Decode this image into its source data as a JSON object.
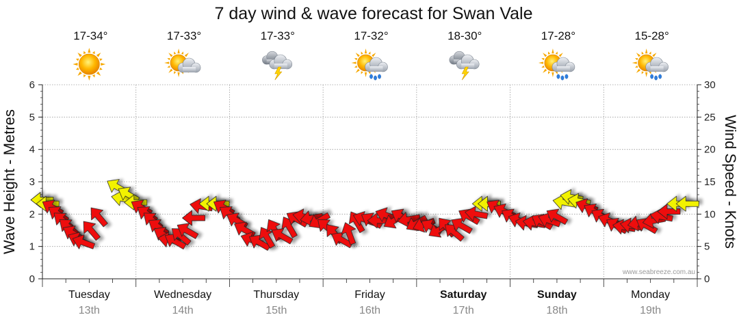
{
  "chart_data": {
    "type": "line",
    "title": "7 day wind & wave forecast for Swan Vale",
    "ylabel_left": "Wave Height - Metres",
    "ylabel_right": "Wind Speed - Knots",
    "ylim_left": [
      0,
      6
    ],
    "ylim_right": [
      0,
      30
    ],
    "yticks_left": [
      "0",
      "1",
      "2",
      "3",
      "4",
      "5",
      "6"
    ],
    "yticks_right": [
      "0",
      "5",
      "10",
      "15",
      "20",
      "25",
      "30"
    ],
    "watermark": "www.seabreeze.com.au",
    "days": [
      {
        "name": "Tuesday",
        "date": "13th",
        "temp": "17-34°",
        "weather": "sunny",
        "bold": false
      },
      {
        "name": "Wednesday",
        "date": "14th",
        "temp": "17-33°",
        "weather": "partly-cloudy",
        "bold": false
      },
      {
        "name": "Thursday",
        "date": "15th",
        "temp": "17-33°",
        "weather": "thunderstorm",
        "bold": false
      },
      {
        "name": "Friday",
        "date": "16th",
        "temp": "17-32°",
        "weather": "sun-showers",
        "bold": false
      },
      {
        "name": "Saturday",
        "date": "17th",
        "temp": "18-30°",
        "weather": "thunderstorm",
        "bold": true
      },
      {
        "name": "Sunday",
        "date": "18th",
        "temp": "17-28°",
        "weather": "sun-showers",
        "bold": true
      },
      {
        "name": "Monday",
        "date": "19th",
        "temp": "15-28°",
        "weather": "sun-showers",
        "bold": false
      }
    ],
    "wind_series": {
      "name": "Wind speed (knots) and direction (arrow heading degrees, 0=up, clockwise), 3-hourly",
      "points": [
        {
          "t": 0.0,
          "speed": 12.2,
          "heading": 270,
          "color": "yellow"
        },
        {
          "t": 0.06,
          "speed": 11.6,
          "heading": 270,
          "color": "yellow"
        },
        {
          "t": 0.11,
          "speed": 11.0,
          "heading": 300,
          "color": "red"
        },
        {
          "t": 0.17,
          "speed": 10.0,
          "heading": 305,
          "color": "red"
        },
        {
          "t": 0.22,
          "speed": 9.0,
          "heading": 310,
          "color": "red"
        },
        {
          "t": 0.28,
          "speed": 8.0,
          "heading": 310,
          "color": "red"
        },
        {
          "t": 0.33,
          "speed": 7.0,
          "heading": 300,
          "color": "red"
        },
        {
          "t": 0.39,
          "speed": 6.0,
          "heading": 295,
          "color": "red"
        },
        {
          "t": 0.44,
          "speed": 5.6,
          "heading": 290,
          "color": "red"
        },
        {
          "t": 0.52,
          "speed": 7.5,
          "heading": 320,
          "color": "red"
        },
        {
          "t": 0.6,
          "speed": 9.6,
          "heading": 320,
          "color": "red"
        },
        {
          "t": 0.8,
          "speed": 14.2,
          "heading": 300,
          "color": "yellow"
        },
        {
          "t": 0.86,
          "speed": 12.4,
          "heading": 280,
          "color": "yellow"
        },
        {
          "t": 0.92,
          "speed": 13.0,
          "heading": 300,
          "color": "yellow"
        },
        {
          "t": 1.0,
          "speed": 11.8,
          "heading": 270,
          "color": "yellow"
        },
        {
          "t": 1.06,
          "speed": 11.0,
          "heading": 300,
          "color": "red"
        },
        {
          "t": 1.12,
          "speed": 10.0,
          "heading": 305,
          "color": "red"
        },
        {
          "t": 1.18,
          "speed": 9.0,
          "heading": 310,
          "color": "red"
        },
        {
          "t": 1.24,
          "speed": 8.0,
          "heading": 305,
          "color": "red"
        },
        {
          "t": 1.3,
          "speed": 6.8,
          "heading": 300,
          "color": "red"
        },
        {
          "t": 1.36,
          "speed": 6.0,
          "heading": 280,
          "color": "red"
        },
        {
          "t": 1.42,
          "speed": 5.8,
          "heading": 300,
          "color": "red"
        },
        {
          "t": 1.48,
          "speed": 6.6,
          "heading": 310,
          "color": "red"
        },
        {
          "t": 1.55,
          "speed": 7.4,
          "heading": 300,
          "color": "red"
        },
        {
          "t": 1.62,
          "speed": 9.4,
          "heading": 270,
          "color": "red"
        },
        {
          "t": 1.7,
          "speed": 11.2,
          "heading": 280,
          "color": "red"
        },
        {
          "t": 1.8,
          "speed": 11.6,
          "heading": 270,
          "color": "yellow"
        },
        {
          "t": 1.88,
          "speed": 11.6,
          "heading": 270,
          "color": "yellow"
        },
        {
          "t": 1.94,
          "speed": 11.0,
          "heading": 300,
          "color": "red"
        },
        {
          "t": 2.0,
          "speed": 10.0,
          "heading": 305,
          "color": "red"
        },
        {
          "t": 2.08,
          "speed": 9.0,
          "heading": 300,
          "color": "red"
        },
        {
          "t": 2.16,
          "speed": 7.6,
          "heading": 300,
          "color": "red"
        },
        {
          "t": 2.24,
          "speed": 6.0,
          "heading": 290,
          "color": "red"
        },
        {
          "t": 2.32,
          "speed": 5.6,
          "heading": 300,
          "color": "red"
        },
        {
          "t": 2.4,
          "speed": 6.4,
          "heading": 330,
          "color": "red"
        },
        {
          "t": 2.48,
          "speed": 7.6,
          "heading": 330,
          "color": "red"
        },
        {
          "t": 2.56,
          "speed": 6.6,
          "heading": 300,
          "color": "red"
        },
        {
          "t": 2.64,
          "speed": 8.0,
          "heading": 330,
          "color": "red"
        },
        {
          "t": 2.72,
          "speed": 9.2,
          "heading": 300,
          "color": "red"
        },
        {
          "t": 2.8,
          "speed": 9.6,
          "heading": 280,
          "color": "red"
        },
        {
          "t": 2.88,
          "speed": 9.4,
          "heading": 260,
          "color": "red"
        },
        {
          "t": 2.96,
          "speed": 9.0,
          "heading": 240,
          "color": "red"
        },
        {
          "t": 3.04,
          "speed": 8.0,
          "heading": 310,
          "color": "red"
        },
        {
          "t": 3.12,
          "speed": 7.0,
          "heading": 320,
          "color": "red"
        },
        {
          "t": 3.2,
          "speed": 6.0,
          "heading": 300,
          "color": "red"
        },
        {
          "t": 3.28,
          "speed": 7.0,
          "heading": 340,
          "color": "red"
        },
        {
          "t": 3.36,
          "speed": 8.8,
          "heading": 330,
          "color": "red"
        },
        {
          "t": 3.44,
          "speed": 9.2,
          "heading": 290,
          "color": "red"
        },
        {
          "t": 3.52,
          "speed": 9.0,
          "heading": 300,
          "color": "red"
        },
        {
          "t": 3.6,
          "speed": 9.0,
          "heading": 270,
          "color": "red"
        },
        {
          "t": 3.68,
          "speed": 9.8,
          "heading": 290,
          "color": "red"
        },
        {
          "t": 3.76,
          "speed": 9.0,
          "heading": 240,
          "color": "red"
        },
        {
          "t": 3.84,
          "speed": 9.6,
          "heading": 300,
          "color": "red"
        },
        {
          "t": 3.92,
          "speed": 9.2,
          "heading": 260,
          "color": "red"
        },
        {
          "t": 4.0,
          "speed": 8.6,
          "heading": 240,
          "color": "red"
        },
        {
          "t": 4.08,
          "speed": 8.4,
          "heading": 250,
          "color": "red"
        },
        {
          "t": 4.16,
          "speed": 8.0,
          "heading": 300,
          "color": "red"
        },
        {
          "t": 4.24,
          "speed": 7.6,
          "heading": 240,
          "color": "red"
        },
        {
          "t": 4.32,
          "speed": 8.0,
          "heading": 320,
          "color": "red"
        },
        {
          "t": 4.4,
          "speed": 7.2,
          "heading": 310,
          "color": "red"
        },
        {
          "t": 4.48,
          "speed": 8.2,
          "heading": 300,
          "color": "red"
        },
        {
          "t": 4.56,
          "speed": 9.6,
          "heading": 300,
          "color": "red"
        },
        {
          "t": 4.64,
          "speed": 10.0,
          "heading": 280,
          "color": "red"
        },
        {
          "t": 4.72,
          "speed": 11.6,
          "heading": 270,
          "color": "yellow"
        },
        {
          "t": 4.78,
          "speed": 11.6,
          "heading": 270,
          "color": "yellow"
        },
        {
          "t": 4.86,
          "speed": 11.0,
          "heading": 300,
          "color": "red"
        },
        {
          "t": 4.94,
          "speed": 10.4,
          "heading": 295,
          "color": "red"
        },
        {
          "t": 5.02,
          "speed": 9.6,
          "heading": 300,
          "color": "red"
        },
        {
          "t": 5.1,
          "speed": 9.0,
          "heading": 290,
          "color": "red"
        },
        {
          "t": 5.18,
          "speed": 8.6,
          "heading": 280,
          "color": "red"
        },
        {
          "t": 5.26,
          "speed": 8.6,
          "heading": 280,
          "color": "red"
        },
        {
          "t": 5.34,
          "speed": 8.8,
          "heading": 300,
          "color": "red"
        },
        {
          "t": 5.42,
          "speed": 9.0,
          "heading": 290,
          "color": "red"
        },
        {
          "t": 5.5,
          "speed": 9.6,
          "heading": 300,
          "color": "red"
        },
        {
          "t": 5.58,
          "speed": 11.8,
          "heading": 280,
          "color": "yellow"
        },
        {
          "t": 5.66,
          "speed": 12.6,
          "heading": 280,
          "color": "yellow"
        },
        {
          "t": 5.74,
          "speed": 12.0,
          "heading": 280,
          "color": "yellow"
        },
        {
          "t": 5.82,
          "speed": 11.2,
          "heading": 290,
          "color": "red"
        },
        {
          "t": 5.9,
          "speed": 10.4,
          "heading": 300,
          "color": "red"
        },
        {
          "t": 5.98,
          "speed": 9.6,
          "heading": 300,
          "color": "red"
        },
        {
          "t": 6.06,
          "speed": 9.0,
          "heading": 290,
          "color": "red"
        },
        {
          "t": 6.14,
          "speed": 8.2,
          "heading": 300,
          "color": "red"
        },
        {
          "t": 6.22,
          "speed": 8.0,
          "heading": 280,
          "color": "red"
        },
        {
          "t": 6.3,
          "speed": 8.2,
          "heading": 280,
          "color": "red"
        },
        {
          "t": 6.38,
          "speed": 8.6,
          "heading": 260,
          "color": "red"
        },
        {
          "t": 6.46,
          "speed": 8.2,
          "heading": 300,
          "color": "red"
        },
        {
          "t": 6.54,
          "speed": 9.0,
          "heading": 260,
          "color": "red"
        },
        {
          "t": 6.62,
          "speed": 9.6,
          "heading": 280,
          "color": "red"
        },
        {
          "t": 6.7,
          "speed": 10.4,
          "heading": 270,
          "color": "red"
        },
        {
          "t": 6.8,
          "speed": 11.6,
          "heading": 270,
          "color": "yellow"
        },
        {
          "t": 6.9,
          "speed": 11.6,
          "heading": 270,
          "color": "yellow"
        }
      ]
    }
  },
  "colors": {
    "arrow_red": "#ee1111",
    "arrow_yellow": "#f2f200",
    "grid": "#999999",
    "axis": "#222222"
  }
}
